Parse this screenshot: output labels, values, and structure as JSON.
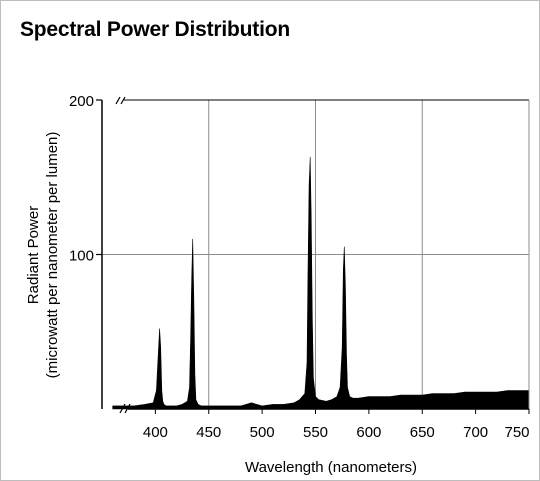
{
  "page": {
    "title": "Spectral Power Distribution"
  },
  "chart_data": {
    "type": "area",
    "title": "Spectral Power Distribution",
    "xlabel": "Wavelength (nanometers)",
    "ylabel_lines": [
      "Radiant Power",
      "(microwatt per nanometer per lumen)"
    ],
    "xlim": [
      350,
      750
    ],
    "ylim": [
      0,
      200
    ],
    "x_ticks": [
      400,
      450,
      500,
      550,
      600,
      650,
      700,
      750
    ],
    "x_tick_labels": [
      "400",
      "450",
      "500",
      "550",
      "600",
      "650",
      "700",
      "750"
    ],
    "y_ticks": [
      100,
      200
    ],
    "y_tick_labels": [
      "100",
      "200"
    ],
    "axis_break_near_origin": true,
    "grid": true,
    "fill_color": "#000000",
    "grid_color": "#8c8c8c",
    "series": [
      {
        "x": [
          360,
          370,
          380,
          390,
          398,
          401,
          403,
          404,
          405,
          406,
          407,
          408,
          410,
          415,
          420,
          425,
          430,
          432,
          433,
          434,
          435,
          436,
          437,
          438,
          440,
          443,
          450,
          460,
          470,
          480,
          485,
          490,
          495,
          500,
          510,
          520,
          530,
          535,
          540,
          542,
          543,
          544,
          545,
          546,
          547,
          548,
          550,
          553,
          560,
          565,
          570,
          573,
          575,
          576,
          577,
          578,
          579,
          580,
          582,
          585,
          590,
          600,
          610,
          620,
          630,
          640,
          650,
          660,
          670,
          680,
          690,
          700,
          710,
          720,
          730,
          740,
          750
        ],
        "y": [
          2,
          2,
          2,
          3,
          4,
          12,
          40,
          52,
          40,
          12,
          5,
          3,
          2,
          2,
          2,
          3,
          5,
          14,
          45,
          85,
          110,
          72,
          22,
          6,
          3,
          2,
          2,
          2,
          2,
          2,
          3,
          4,
          3,
          2,
          3,
          3,
          4,
          6,
          10,
          30,
          90,
          145,
          163,
          125,
          60,
          20,
          8,
          6,
          5,
          6,
          8,
          14,
          40,
          90,
          105,
          80,
          35,
          14,
          8,
          7,
          7,
          8,
          8,
          8,
          9,
          9,
          9,
          10,
          10,
          10,
          11,
          11,
          11,
          11,
          12,
          12,
          12
        ]
      }
    ]
  }
}
